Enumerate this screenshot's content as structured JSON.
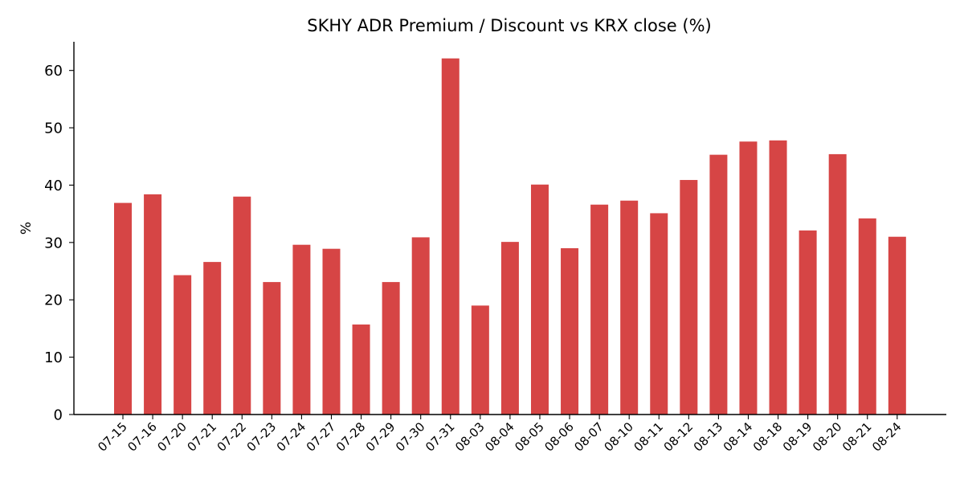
{
  "chart_data": {
    "type": "bar",
    "title": "SKHY ADR Premium / Discount vs KRX close (%)",
    "xlabel": "",
    "ylabel": "%",
    "ylim": [
      0,
      65
    ],
    "yticks": [
      0,
      10,
      20,
      30,
      40,
      50,
      60
    ],
    "grid": false,
    "bar_color": "#d64545",
    "categories": [
      "07-15",
      "07-16",
      "07-20",
      "07-21",
      "07-22",
      "07-23",
      "07-24",
      "07-27",
      "07-28",
      "07-29",
      "07-30",
      "07-31",
      "08-03",
      "08-04",
      "08-05",
      "08-06",
      "08-07",
      "08-10",
      "08-11",
      "08-12",
      "08-13",
      "08-14",
      "08-18",
      "08-19",
      "08-20",
      "08-21",
      "08-24"
    ],
    "values": [
      36.9,
      38.4,
      24.3,
      26.6,
      38.0,
      23.1,
      29.6,
      28.9,
      15.7,
      23.1,
      30.9,
      62.1,
      19.0,
      30.1,
      40.1,
      29.0,
      36.6,
      37.3,
      35.1,
      40.9,
      45.3,
      47.6,
      47.8,
      32.1,
      45.4,
      34.2,
      31.0
    ]
  }
}
